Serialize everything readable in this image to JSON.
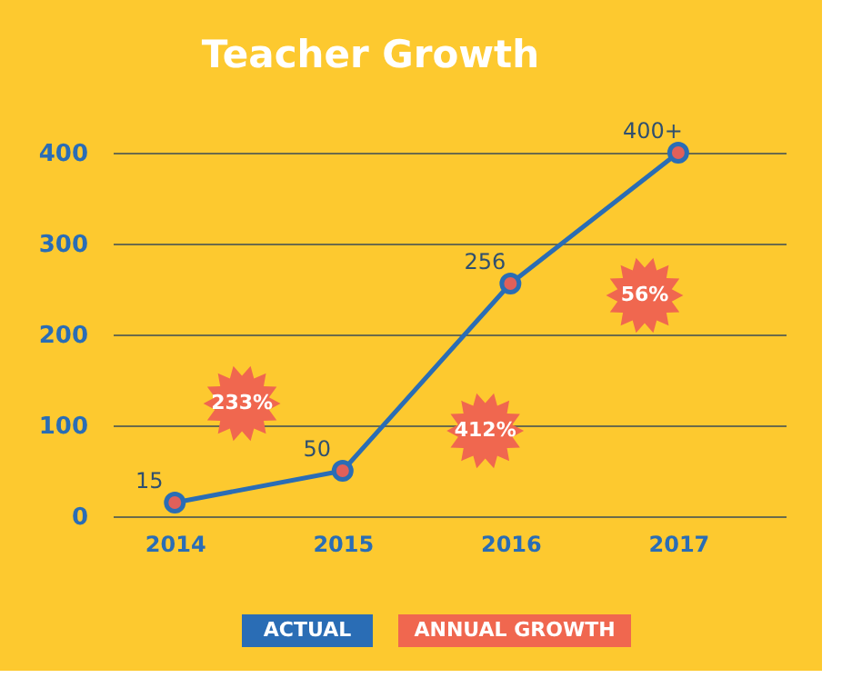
{
  "chart_data": {
    "type": "line",
    "title": "Teacher Growth",
    "x": [
      2014,
      2015,
      2016,
      2017
    ],
    "xlim": [
      2013.63,
      2017.64
    ],
    "xticks": [
      2014,
      2015,
      2016,
      2017
    ],
    "ylim": [
      0,
      400
    ],
    "yticks": [
      0,
      100,
      200,
      300,
      400
    ],
    "grid": "y",
    "legend": "bottom",
    "series": [
      {
        "name": "ACTUAL",
        "color": "#2a6db5",
        "marker": "circle",
        "values": [
          15,
          50,
          256,
          400
        ],
        "value_labels": [
          "15",
          "50",
          "256",
          "400+"
        ]
      },
      {
        "name": "ANNUAL GROWTH",
        "color": "#f0674f",
        "type": "scatter",
        "marker": "star",
        "x": [
          2014.4,
          2015.85,
          2016.8
        ],
        "values": [
          124,
          94,
          243
        ]
      }
    ],
    "annotations": [
      {
        "text": "233%",
        "x": 2014.4,
        "y": 124
      },
      {
        "text": "412%",
        "x": 2015.85,
        "y": 94
      },
      {
        "text": "56%",
        "x": 2016.8,
        "y": 243
      }
    ]
  }
}
